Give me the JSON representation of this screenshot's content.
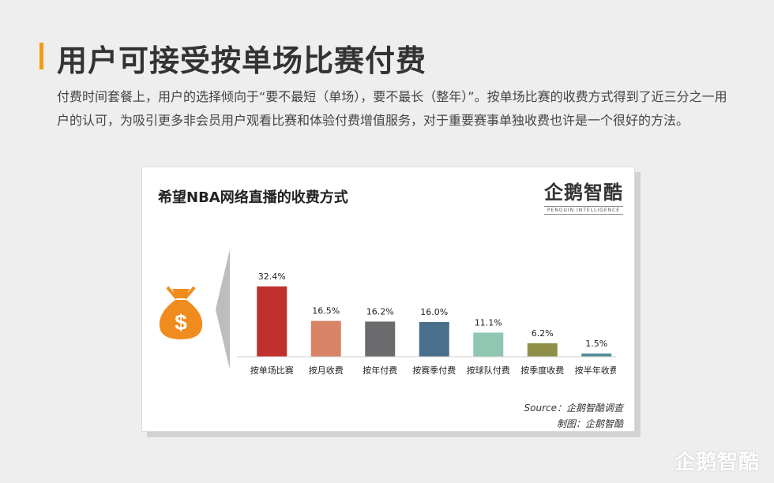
{
  "header": {
    "title": "用户可接受按单场比赛付费",
    "intro": "付费时间套餐上，用户的选择倾向于“要不最短（单场），要不最长（整年）”。按单场比赛的收费方式得到了近三分之一用户的认可，为吸引更多非会员用户观看比赛和体验付费增值服务，对于重要赛事单独收费也许是一个很好的方法。"
  },
  "card": {
    "brand_name": "企鹅智酷",
    "brand_sub": "PENGUIN INTELLIGENCE",
    "source": "Source：企鹅智酷调查",
    "maker": "制图：企鹅智酷"
  },
  "footer": {
    "logo": "企鹅智酷"
  },
  "chart_data": {
    "type": "bar",
    "title": "希望NBA网络直播的收费方式",
    "categories": [
      "按单场比赛",
      "按月收费",
      "按年付费",
      "按赛季付费",
      "按球队付费",
      "按季度收费",
      "按半年收费"
    ],
    "values": [
      32.4,
      16.5,
      16.2,
      16.0,
      11.1,
      6.2,
      1.5
    ],
    "value_labels": [
      "32.4%",
      "16.5%",
      "16.2%",
      "16.0%",
      "11.1%",
      "6.2%",
      "1.5%"
    ],
    "colors": [
      "#c0302c",
      "#d98366",
      "#6b6b6e",
      "#4a6f8a",
      "#8fc7b0",
      "#8f8f4a",
      "#4f8f96"
    ],
    "ylim": [
      0,
      40
    ],
    "grid": false,
    "legend": "none"
  }
}
